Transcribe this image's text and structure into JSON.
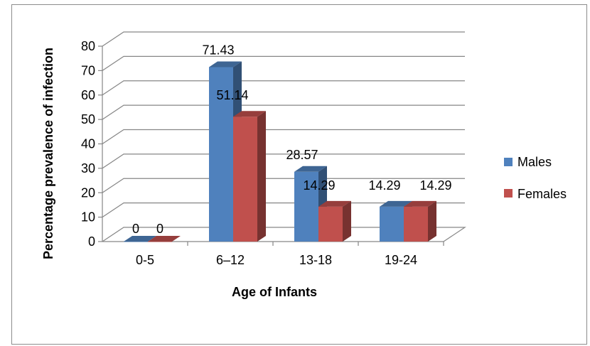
{
  "chart_data": {
    "type": "bar",
    "three_d": true,
    "categories": [
      "0-5",
      "6–12",
      "13-18",
      "19-24"
    ],
    "series": [
      {
        "name": "Males",
        "values": [
          0,
          71.43,
          28.57,
          14.29
        ],
        "data_labels": [
          "0",
          "71.43",
          "28.57",
          "14.29"
        ]
      },
      {
        "name": "Females",
        "values": [
          0,
          51.14,
          14.29,
          14.29
        ],
        "data_labels": [
          "0",
          "51.14",
          "14.29",
          "14.29"
        ]
      }
    ],
    "title": "",
    "xlabel": "Age of Infants",
    "ylabel": "Percentage prevalence of infection",
    "ylim": [
      0,
      80
    ],
    "yticks": [
      "0",
      "10",
      "20",
      "30",
      "40",
      "50",
      "60",
      "70",
      "80"
    ],
    "grid": true,
    "legend_position": "right"
  },
  "colors": {
    "males": "#4f81bd",
    "females": "#c0504d",
    "grid": "#868686",
    "text": "#000000",
    "frame": "#8c8c8c"
  }
}
